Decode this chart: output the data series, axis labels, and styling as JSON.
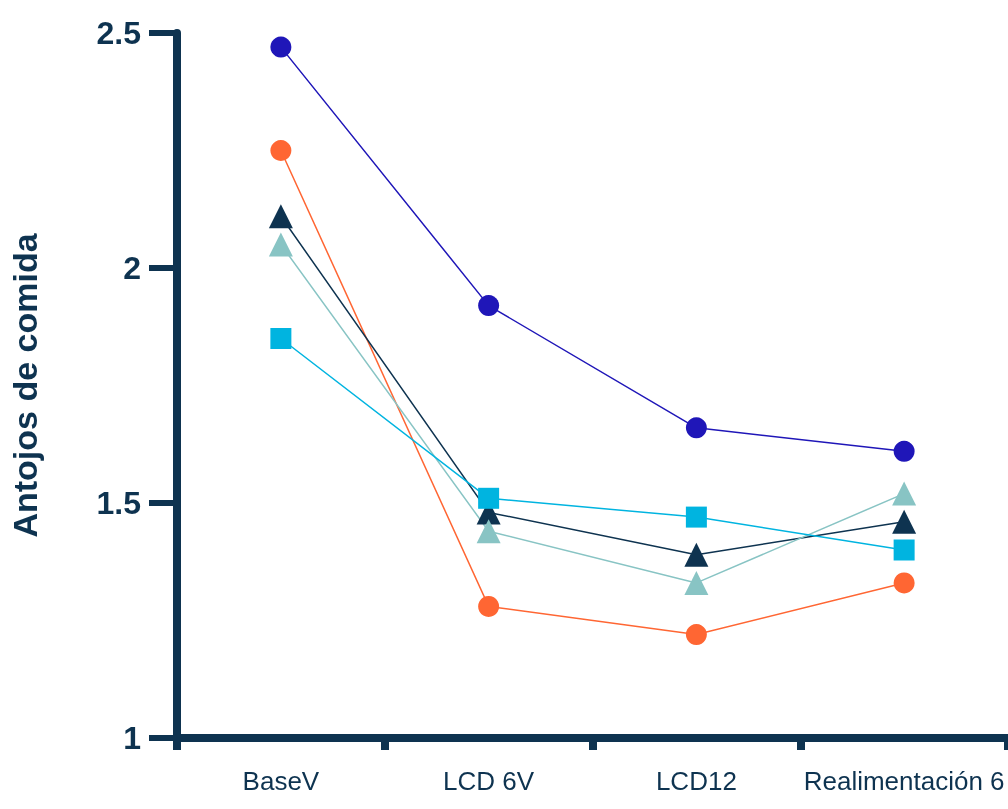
{
  "chart_data": {
    "type": "line",
    "ylabel": "Antojos de comida",
    "categories": [
      "BaseV",
      "LCD 6V",
      "LCD12",
      "Realimentación 6"
    ],
    "ylim": [
      1,
      2.5
    ],
    "yticks": [
      1,
      1.5,
      2,
      2.5
    ],
    "grid": false,
    "series": [
      {
        "color": "#1f16b8",
        "marker": "circle",
        "values": [
          2.47,
          1.92,
          1.66,
          1.61
        ]
      },
      {
        "color": "#ff6633",
        "marker": "circle",
        "values": [
          2.25,
          1.28,
          1.22,
          1.33
        ]
      },
      {
        "color": "#0e3350",
        "marker": "triangle",
        "values": [
          2.11,
          1.48,
          1.39,
          1.46
        ]
      },
      {
        "color": "#88c4c4",
        "marker": "triangle",
        "values": [
          2.05,
          1.44,
          1.33,
          1.52
        ]
      },
      {
        "color": "#00b4e0",
        "marker": "square",
        "values": [
          1.85,
          1.51,
          1.47,
          1.4
        ]
      }
    ]
  }
}
